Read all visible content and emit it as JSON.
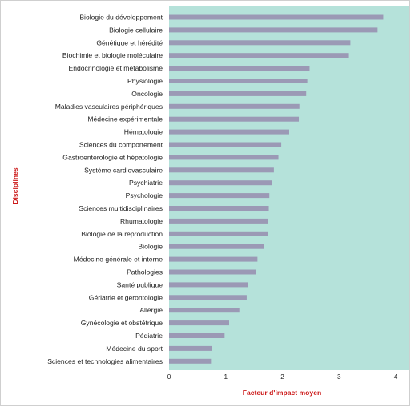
{
  "chart_data": {
    "type": "bar",
    "orientation": "horizontal",
    "categories": [
      "Biologie du développement",
      "Biologie cellulaire",
      "Génétique et hérédité",
      "Biochimie et biologie moléculaire",
      "Endocrinologie et métabolisme",
      "Physiologie",
      "Oncologie",
      "Maladies vasculaires périphériques",
      "Médecine expérimentale",
      "Hématologie",
      "Sciences du comportement",
      "Gastroentérologie et hépatologie",
      "Système cardiovasculaire",
      "Psychiatrie",
      "Psychologie",
      "Sciences multidisciplinaires",
      "Rhumatologie",
      "Biologie de la reproduction",
      "Biologie",
      "Médecine générale et interne",
      "Pathologies",
      "Santé publique",
      "Gériatrie et gérontologie",
      "Allergie",
      "Gynécologie et obstétrique",
      "Pédiatrie",
      "Médecine du sport",
      "Sciences et technologies alimentaires"
    ],
    "values": [
      3.78,
      3.68,
      3.2,
      3.16,
      2.48,
      2.44,
      2.42,
      2.3,
      2.29,
      2.12,
      1.98,
      1.93,
      1.85,
      1.81,
      1.77,
      1.76,
      1.75,
      1.74,
      1.67,
      1.56,
      1.53,
      1.39,
      1.37,
      1.24,
      1.06,
      0.98,
      0.76,
      0.74
    ],
    "xlabel": "Facteur d'impact moyen",
    "ylabel": "Disciplines",
    "xlim": [
      0,
      4
    ],
    "xticks": [
      0,
      1,
      2,
      3,
      4
    ],
    "grid": false,
    "colors": {
      "plot_background": "#b5e2da",
      "bar": "#9b99b5",
      "axis_title": "#cc1a1a",
      "frame": "#cfcfcf"
    }
  }
}
